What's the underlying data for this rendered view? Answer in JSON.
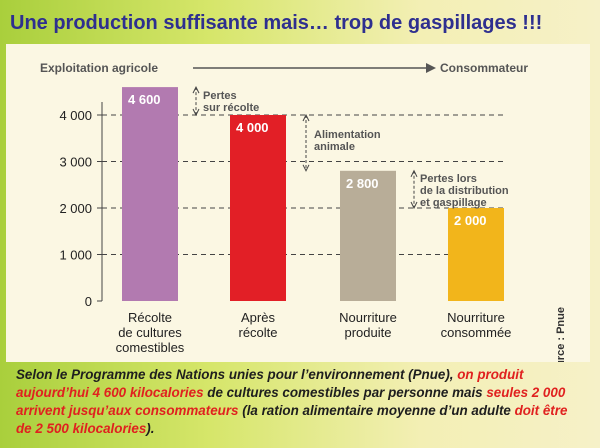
{
  "title": "Une production suffisante mais… trop de gaspillages !!!",
  "flow": {
    "from": "Exploitation agricole",
    "to": "Consommateur"
  },
  "annotations": {
    "pertes_recolte": [
      "Pertes",
      "sur récolte"
    ],
    "alimentation_animale": [
      "Alimentation",
      "animale"
    ],
    "pertes_distribution": [
      "Pertes lors",
      "de la distribution",
      "et gaspillage"
    ]
  },
  "source": "Source : Pnue",
  "caption": [
    {
      "text": "Selon le Programme des Nations unies pour l’environnement (Pnue), ",
      "red": false
    },
    {
      "text": "on produit aujourd’hui 4 600 kilocalories",
      "red": true
    },
    {
      "text": " de cultures comestibles par personne mais ",
      "red": false
    },
    {
      "text": "seules 2 000 arrivent jusqu’aux consommateurs",
      "red": true
    },
    {
      "text": " (la ration alimentaire moyenne d’un adulte ",
      "red": false
    },
    {
      "text": "doit être de 2 500 kilocalories",
      "red": true
    },
    {
      "text": ").",
      "red": false
    }
  ],
  "chart_data": {
    "type": "bar",
    "categories": [
      [
        "Récolte",
        "de cultures",
        "comestibles"
      ],
      [
        "Après",
        "récolte"
      ],
      [
        "Nourriture",
        "produite"
      ],
      [
        "Nourriture",
        "consommée"
      ]
    ],
    "values": [
      4600,
      4000,
      2800,
      2000
    ],
    "value_labels": [
      "4 600",
      "4 000",
      "2 800",
      "2 000"
    ],
    "colors": [
      "#b27ab0",
      "#e21f26",
      "#b8ad98",
      "#f2b51b"
    ],
    "ylim": [
      0,
      5000
    ],
    "yticks": [
      0,
      1000,
      2000,
      3000,
      4000
    ],
    "ytick_labels": [
      "0",
      "1 000",
      "2 000",
      "3 000",
      "4 000"
    ],
    "grid": true
  }
}
